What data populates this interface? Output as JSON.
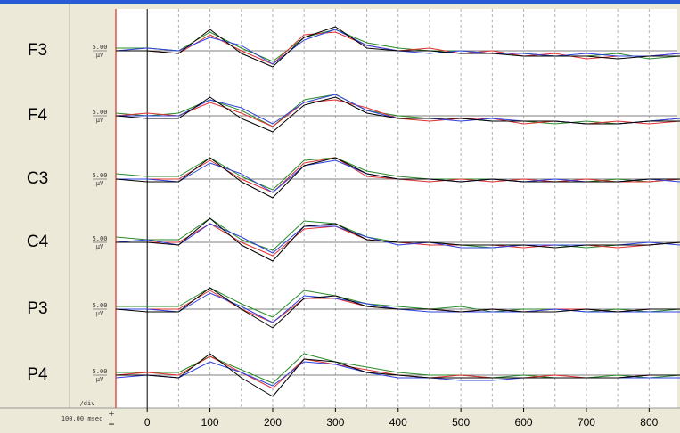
{
  "chart_data": {
    "type": "line",
    "x": [
      -50,
      0,
      50,
      100,
      150,
      200,
      250,
      300,
      350,
      400,
      450,
      500,
      550,
      600,
      650,
      700,
      750,
      800,
      850
    ],
    "xlim": [
      -50,
      845
    ],
    "xticks": [
      0,
      100,
      200,
      300,
      400,
      500,
      600,
      700,
      800
    ],
    "xgrid": [
      50,
      100,
      150,
      200,
      250,
      300,
      350,
      400,
      450,
      500,
      550,
      600,
      650,
      700,
      750,
      800
    ],
    "ylim": [
      -12,
      12
    ],
    "yticks": [
      0
    ],
    "scale_value": "5.00",
    "scale_unit": "μV",
    "time_scale": "100.00 msec",
    "per_div": "/div",
    "channels": [
      {
        "label": "F3",
        "series": [
          {
            "color": "#2a8a2a",
            "values": [
              1,
              1,
              0,
              7,
              1,
              -4,
              5,
              8,
              3,
              1,
              0,
              0,
              -1,
              -1,
              -2,
              -2,
              -1,
              -3,
              -2
            ]
          },
          {
            "color": "#e03030",
            "values": [
              0,
              0,
              -1,
              6,
              0,
              -5,
              6,
              7,
              2,
              0,
              1,
              -1,
              0,
              -2,
              -1,
              -3,
              -2,
              -2,
              -1
            ]
          },
          {
            "color": "#3040e0",
            "values": [
              0,
              1,
              0,
              5,
              2,
              -5,
              4,
              8,
              2,
              0,
              -1,
              0,
              -1,
              -1,
              -2,
              -1,
              -2,
              -2,
              -1
            ]
          },
          {
            "color": "#000000",
            "values": [
              0,
              0,
              -1,
              8,
              -1,
              -6,
              5,
              9,
              1,
              0,
              0,
              -1,
              -1,
              -2,
              -2,
              -2,
              -3,
              -2,
              -2
            ]
          }
        ]
      },
      {
        "label": "F4",
        "series": [
          {
            "color": "#2a8a2a",
            "values": [
              1,
              0,
              1,
              6,
              2,
              -4,
              6,
              8,
              2,
              0,
              -1,
              -1,
              -2,
              -2,
              -3,
              -2,
              -3,
              -2,
              -1
            ]
          },
          {
            "color": "#e03030",
            "values": [
              0,
              1,
              0,
              5,
              1,
              -4,
              5,
              6,
              3,
              -1,
              -2,
              -1,
              -1,
              -3,
              -2,
              -3,
              -2,
              -3,
              -2
            ]
          },
          {
            "color": "#3040e0",
            "values": [
              0,
              0,
              0,
              6,
              3,
              -3,
              5,
              8,
              2,
              -1,
              -1,
              -2,
              -1,
              -2,
              -2,
              -3,
              -3,
              -2,
              -1
            ]
          },
          {
            "color": "#000000",
            "values": [
              0,
              -1,
              -1,
              7,
              -1,
              -6,
              4,
              7,
              1,
              -1,
              -1,
              -1,
              -2,
              -2,
              -2,
              -3,
              -3,
              -2,
              -2
            ]
          }
        ]
      },
      {
        "label": "C3",
        "series": [
          {
            "color": "#2a8a2a",
            "values": [
              2,
              1,
              1,
              8,
              1,
              -4,
              7,
              8,
              3,
              1,
              0,
              0,
              0,
              -1,
              -1,
              -1,
              0,
              -1,
              0
            ]
          },
          {
            "color": "#e03030",
            "values": [
              0,
              0,
              0,
              7,
              0,
              -5,
              6,
              8,
              1,
              0,
              -1,
              0,
              -1,
              0,
              -1,
              0,
              -1,
              -1,
              0
            ]
          },
          {
            "color": "#3040e0",
            "values": [
              0,
              0,
              -1,
              6,
              2,
              -5,
              5,
              7,
              2,
              0,
              0,
              -1,
              0,
              -1,
              0,
              -1,
              -1,
              0,
              -1
            ]
          },
          {
            "color": "#000000",
            "values": [
              0,
              -1,
              -1,
              8,
              -1,
              -7,
              5,
              8,
              2,
              0,
              0,
              -1,
              0,
              -1,
              -1,
              -1,
              -1,
              0,
              0
            ]
          }
        ]
      },
      {
        "label": "C4",
        "series": [
          {
            "color": "#2a8a2a",
            "values": [
              2,
              1,
              1,
              9,
              1,
              -3,
              8,
              7,
              2,
              0,
              0,
              -1,
              -2,
              -1,
              -1,
              -2,
              -1,
              -1,
              0
            ]
          },
          {
            "color": "#e03030",
            "values": [
              0,
              0,
              0,
              7,
              0,
              -5,
              5,
              6,
              1,
              0,
              -1,
              -1,
              -1,
              -2,
              -1,
              -1,
              -2,
              -1,
              0
            ]
          },
          {
            "color": "#3040e0",
            "values": [
              0,
              1,
              -1,
              7,
              2,
              -4,
              6,
              6,
              2,
              -1,
              0,
              -2,
              -2,
              -1,
              -1,
              -1,
              -1,
              0,
              -1
            ]
          },
          {
            "color": "#000000",
            "values": [
              0,
              0,
              -1,
              9,
              -1,
              -7,
              6,
              7,
              1,
              0,
              0,
              -1,
              -1,
              -1,
              -2,
              -1,
              -1,
              -1,
              0
            ]
          }
        ]
      },
      {
        "label": "P3",
        "series": [
          {
            "color": "#2a8a2a",
            "values": [
              1,
              1,
              1,
              8,
              2,
              -3,
              7,
              5,
              2,
              1,
              0,
              1,
              -1,
              0,
              0,
              -1,
              0,
              -1,
              0
            ]
          },
          {
            "color": "#e03030",
            "values": [
              0,
              0,
              0,
              7,
              0,
              -5,
              4,
              4,
              1,
              0,
              0,
              -1,
              0,
              -1,
              0,
              0,
              -1,
              0,
              0
            ]
          },
          {
            "color": "#3040e0",
            "values": [
              0,
              0,
              -1,
              6,
              1,
              -5,
              5,
              4,
              2,
              0,
              -1,
              -1,
              -1,
              -1,
              0,
              -1,
              -1,
              -1,
              -1
            ]
          },
          {
            "color": "#000000",
            "values": [
              0,
              -1,
              -1,
              8,
              0,
              -7,
              4,
              5,
              1,
              0,
              0,
              -1,
              0,
              -1,
              -1,
              0,
              -1,
              0,
              0
            ]
          }
        ]
      },
      {
        "label": "P4",
        "series": [
          {
            "color": "#2a8a2a",
            "values": [
              1,
              1,
              1,
              7,
              2,
              -3,
              8,
              5,
              3,
              1,
              0,
              0,
              -1,
              0,
              -1,
              -1,
              0,
              -1,
              0
            ]
          },
          {
            "color": "#e03030",
            "values": [
              0,
              1,
              0,
              7,
              1,
              -5,
              6,
              4,
              2,
              0,
              -1,
              0,
              -1,
              -1,
              0,
              -1,
              -1,
              0,
              0
            ]
          },
          {
            "color": "#3040e0",
            "values": [
              -1,
              0,
              -1,
              5,
              1,
              -4,
              5,
              4,
              1,
              -1,
              -1,
              -2,
              -2,
              -1,
              -1,
              -1,
              -1,
              -1,
              -1
            ]
          },
          {
            "color": "#000000",
            "values": [
              0,
              0,
              -1,
              8,
              -1,
              -8,
              6,
              5,
              1,
              0,
              -1,
              -1,
              -1,
              -1,
              -1,
              -1,
              -1,
              0,
              0
            ]
          }
        ]
      }
    ]
  }
}
